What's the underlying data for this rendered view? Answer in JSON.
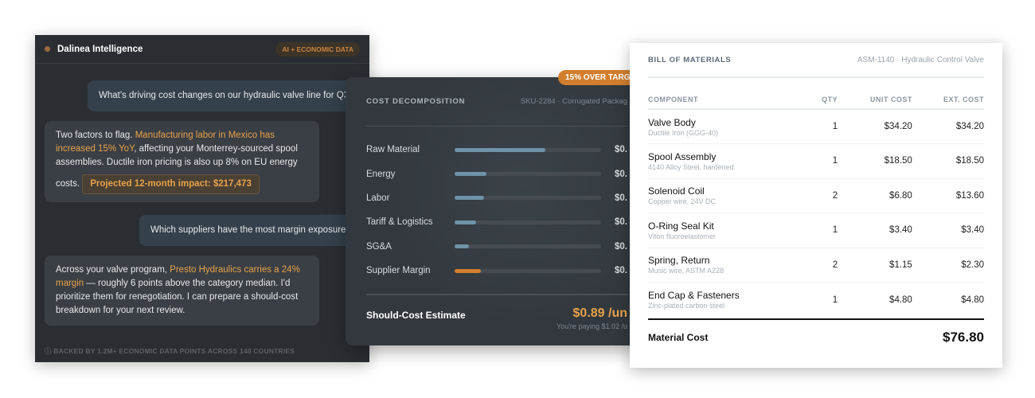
{
  "chat": {
    "brand": "Dalinea Intelligence",
    "tag": "AI + ECONOMIC DATA",
    "q1": "What's driving cost changes on our hydraulic valve line for Q3?",
    "a1": {
      "t1": "Two factors to flag. ",
      "h1": "Manufacturing labor in Mexico has increased 15% YoY",
      "t2": ", affecting your Monterrey-sourced spool assemblies. Ductile iron pricing is also up 8% on EU energy costs. ",
      "pill": "Projected 12-month impact: $217,473"
    },
    "q2": "Which suppliers have the most margin exposure?",
    "a2": {
      "t1": "Across your valve program, ",
      "h1": "Presto Hydraulics carries a 24% margin",
      "t2": " — roughly 6 points above the category median. I'd prioritize them for renegotiation. I can prepare a should-cost breakdown for your next review."
    },
    "footer": "BACKED BY 1.2M+ ECONOMIC DATA POINTS ACROSS 140 COUNTRIES"
  },
  "cost": {
    "badge": "15% OVER TARG",
    "title": "COST DECOMPOSITION",
    "sku": "SKU-2284 · Corrugated Packag",
    "rows": [
      {
        "label": "Raw Material",
        "value": "$0.",
        "share": 0.62,
        "color": "#6f93a8"
      },
      {
        "label": "Energy",
        "value": "$0.",
        "share": 0.22,
        "color": "#6f93a8"
      },
      {
        "label": "Labor",
        "value": "$0.",
        "share": 0.2,
        "color": "#6f93a8"
      },
      {
        "label": "Tariff & Logistics",
        "value": "$0.",
        "share": 0.15,
        "color": "#6f93a8"
      },
      {
        "label": "SG&A",
        "value": "$0.",
        "share": 0.1,
        "color": "#6f93a8"
      },
      {
        "label": "Supplier Margin",
        "value": "$0.",
        "share": 0.18,
        "color": "#d27e2e"
      }
    ],
    "estimate_label": "Should-Cost Estimate",
    "estimate_value": "$0.89 /un",
    "paying": "You're paying $1.02 /u"
  },
  "bom": {
    "title": "BILL OF MATERIALS",
    "assembly": "ASM-1140 · Hydraulic Control Valve",
    "headers": [
      "COMPONENT",
      "QTY",
      "UNIT COST",
      "EXT. COST"
    ],
    "rows": [
      {
        "name": "Valve Body",
        "spec": "Ductile Iron (GGG-40)",
        "qty": "1",
        "unit": "$34.20",
        "ext": "$34.20"
      },
      {
        "name": "Spool Assembly",
        "spec": "4140 Alloy Steel, hardened",
        "qty": "1",
        "unit": "$18.50",
        "ext": "$18.50"
      },
      {
        "name": "Solenoid Coil",
        "spec": "Copper wire, 24V DC",
        "qty": "2",
        "unit": "$6.80",
        "ext": "$13.60"
      },
      {
        "name": "O-Ring Seal Kit",
        "spec": "Viton fluoroelastomer",
        "qty": "1",
        "unit": "$3.40",
        "ext": "$3.40"
      },
      {
        "name": "Spring, Return",
        "spec": "Music wire, ASTM A228",
        "qty": "2",
        "unit": "$1.15",
        "ext": "$2.30"
      },
      {
        "name": "End Cap & Fasteners",
        "spec": "Zinc-plated carbon steel",
        "qty": "1",
        "unit": "$4.80",
        "ext": "$4.80"
      }
    ],
    "total_label": "Material Cost",
    "total_value": "$76.80"
  }
}
